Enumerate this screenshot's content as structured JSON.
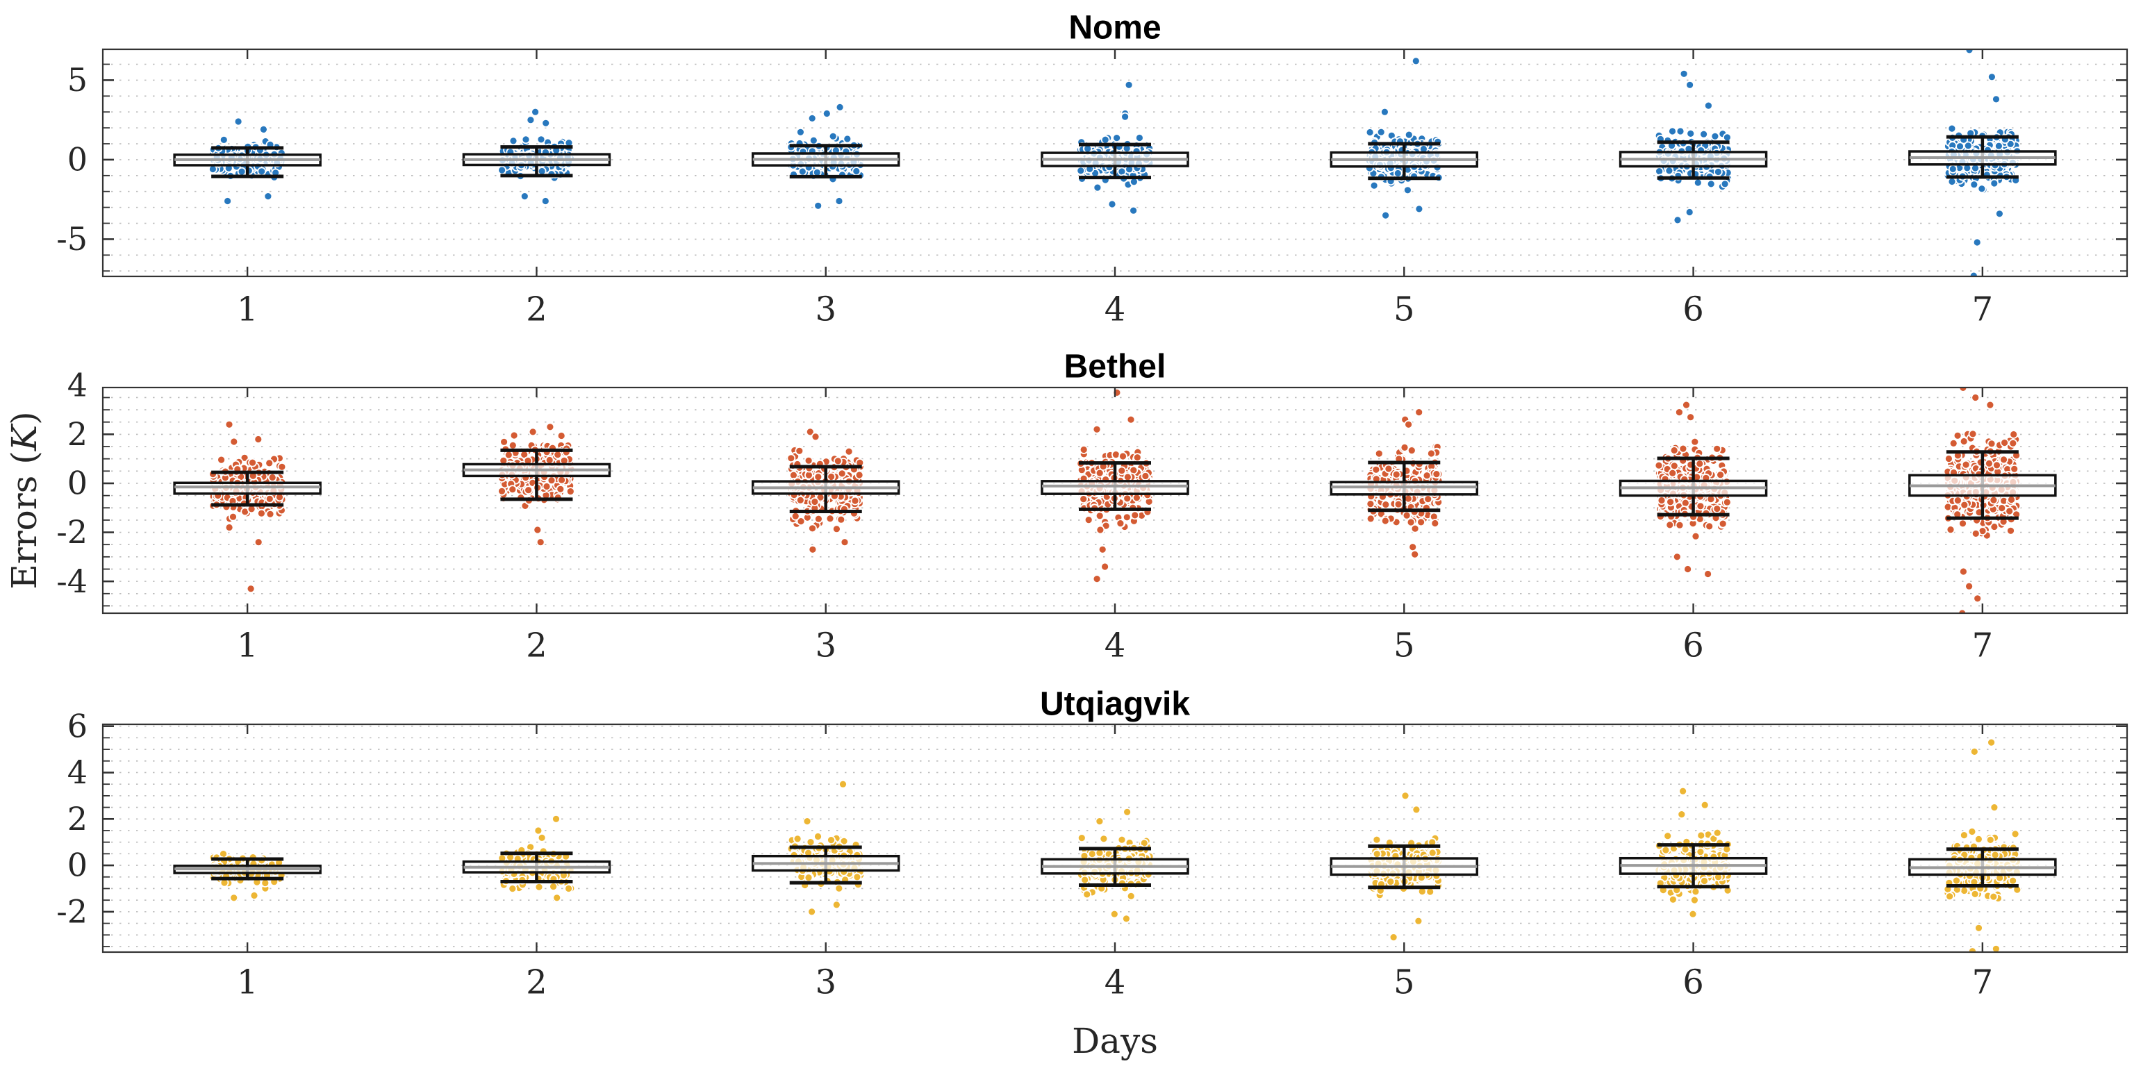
{
  "figure": {
    "background": "#ffffff",
    "xlabel": "Days",
    "ylabel": "Errors (K)"
  },
  "chart_data": {
    "type": "box-scatter",
    "description": "Three stacked panels of temperature forecast errors (K) by lead day; each day shows a jittered point swarm with an overlaid box (Q1-Q3, gray median) and whiskers with caps.",
    "x": [
      1,
      2,
      3,
      4,
      5,
      6,
      7
    ],
    "xlabel": "Days",
    "ylabel": "Errors (K)",
    "xlim": [
      0.5,
      7.5
    ],
    "grid": "horizontal-dotted-minor",
    "legend": "none",
    "colors": {
      "axis": "#333333",
      "text": "#262626",
      "grid": "#bcbcbc",
      "box_stroke": "#111111",
      "median": "#9a9a9a",
      "box_fill": "#ffffff",
      "box_fill_alpha": 0.72,
      "dot_edge": "#ffffff"
    },
    "subplots": [
      {
        "title": "Nome",
        "dot_color": "#2878BE",
        "ylim": [
          -7.34,
          6.94
        ],
        "yticks": [
          -5,
          0,
          5
        ],
        "grid_step": 1,
        "stats": [
          {
            "day": 1,
            "median": 0.0,
            "q1": -0.35,
            "q3": 0.31,
            "whisker_low": -1.05,
            "whisker_high": 0.74,
            "sigma": 0.5,
            "n": 140,
            "outliers": [
              2.4,
              1.9,
              -2.3,
              -2.6
            ]
          },
          {
            "day": 2,
            "median": 0.0,
            "q1": -0.33,
            "q3": 0.34,
            "whisker_low": -1.0,
            "whisker_high": 0.8,
            "sigma": 0.55,
            "n": 150,
            "outliers": [
              3.0,
              2.5,
              2.3,
              -2.3,
              -2.6
            ]
          },
          {
            "day": 3,
            "median": 0.02,
            "q1": -0.36,
            "q3": 0.39,
            "whisker_low": -1.07,
            "whisker_high": 0.88,
            "sigma": 0.6,
            "n": 190,
            "outliers": [
              3.3,
              2.9,
              2.6,
              -2.6,
              -2.9
            ]
          },
          {
            "day": 4,
            "median": 0.02,
            "q1": -0.4,
            "q3": 0.43,
            "whisker_low": -1.12,
            "whisker_high": 0.95,
            "sigma": 0.63,
            "n": 210,
            "outliers": [
              4.7,
              2.9,
              2.7,
              -2.8,
              -3.2
            ]
          },
          {
            "day": 5,
            "median": 0.0,
            "q1": -0.43,
            "q3": 0.45,
            "whisker_low": -1.17,
            "whisker_high": 1.0,
            "sigma": 0.68,
            "n": 220,
            "outliers": [
              6.2,
              3.0,
              -3.1,
              -3.5
            ]
          },
          {
            "day": 6,
            "median": 0.03,
            "q1": -0.42,
            "q3": 0.48,
            "whisker_low": -1.15,
            "whisker_high": 1.1,
            "sigma": 0.7,
            "n": 230,
            "outliers": [
              5.4,
              4.7,
              3.4,
              -3.3,
              -3.8
            ]
          },
          {
            "day": 7,
            "median": 0.13,
            "q1": -0.3,
            "q3": 0.52,
            "whisker_low": -1.09,
            "whisker_high": 1.43,
            "sigma": 0.8,
            "n": 260,
            "outliers": [
              6.9,
              5.2,
              3.8,
              -3.4,
              -5.2,
              -7.3
            ]
          }
        ]
      },
      {
        "title": "Bethel",
        "dot_color": "#D45B33",
        "ylim": [
          -5.3,
          3.91
        ],
        "yticks": [
          -4,
          -2,
          0,
          2,
          4
        ],
        "grid_step": 0.5,
        "stats": [
          {
            "day": 1,
            "median": -0.15,
            "q1": -0.42,
            "q3": 0.02,
            "whisker_low": -0.88,
            "whisker_high": 0.45,
            "sigma": 0.5,
            "n": 260,
            "outliers": [
              2.4,
              1.8,
              1.7,
              -1.8,
              -2.4,
              -4.3
            ]
          },
          {
            "day": 2,
            "median": 0.55,
            "q1": 0.3,
            "q3": 0.78,
            "whisker_low": -0.65,
            "whisker_high": 1.35,
            "sigma": 0.55,
            "n": 270,
            "outliers": [
              2.3,
              2.1,
              -1.9,
              -2.4
            ]
          },
          {
            "day": 3,
            "median": -0.18,
            "q1": -0.42,
            "q3": 0.08,
            "whisker_low": -1.15,
            "whisker_high": 0.68,
            "sigma": 0.62,
            "n": 300,
            "outliers": [
              2.1,
              1.9,
              -2.4,
              -2.7
            ]
          },
          {
            "day": 4,
            "median": -0.11,
            "q1": -0.43,
            "q3": 0.09,
            "whisker_low": -1.06,
            "whisker_high": 0.83,
            "sigma": 0.65,
            "n": 310,
            "outliers": [
              3.7,
              2.6,
              2.2,
              -1.9,
              -2.7,
              -3.4,
              -3.9
            ]
          },
          {
            "day": 5,
            "median": -0.15,
            "q1": -0.45,
            "q3": 0.05,
            "whisker_low": -1.1,
            "whisker_high": 0.85,
            "sigma": 0.65,
            "n": 330,
            "outliers": [
              2.9,
              2.6,
              2.4,
              -2.6,
              -2.9
            ]
          },
          {
            "day": 6,
            "median": -0.18,
            "q1": -0.5,
            "q3": 0.1,
            "whisker_low": -1.28,
            "whisker_high": 1.02,
            "sigma": 0.75,
            "n": 360,
            "outliers": [
              3.2,
              2.9,
              2.7,
              -3.0,
              -3.5,
              -3.7
            ]
          },
          {
            "day": 7,
            "median": -0.1,
            "q1": -0.5,
            "q3": 0.33,
            "whisker_low": -1.42,
            "whisker_high": 1.28,
            "sigma": 0.9,
            "n": 390,
            "outliers": [
              3.9,
              3.5,
              3.2,
              -3.6,
              -4.2,
              -4.7,
              -5.3
            ]
          }
        ]
      },
      {
        "title": "Utqiagvik",
        "dot_color": "#EDB634",
        "ylim": [
          -3.74,
          6.08
        ],
        "yticks": [
          -2,
          0,
          2,
          4,
          6
        ],
        "grid_step": 0.5,
        "stats": [
          {
            "day": 1,
            "median": -0.15,
            "q1": -0.33,
            "q3": -0.02,
            "whisker_low": -0.57,
            "whisker_high": 0.27,
            "sigma": 0.3,
            "n": 130,
            "outliers": [
              -1.3,
              -1.4
            ]
          },
          {
            "day": 2,
            "median": -0.08,
            "q1": -0.3,
            "q3": 0.16,
            "whisker_low": -0.7,
            "whisker_high": 0.52,
            "sigma": 0.38,
            "n": 140,
            "outliers": [
              2.0,
              1.5,
              -1.4
            ]
          },
          {
            "day": 3,
            "median": 0.08,
            "q1": -0.22,
            "q3": 0.4,
            "whisker_low": -0.75,
            "whisker_high": 0.78,
            "sigma": 0.48,
            "n": 160,
            "outliers": [
              3.5,
              1.9,
              -1.7,
              -2.0
            ]
          },
          {
            "day": 4,
            "median": -0.05,
            "q1": -0.35,
            "q3": 0.26,
            "whisker_low": -0.85,
            "whisker_high": 0.72,
            "sigma": 0.5,
            "n": 180,
            "outliers": [
              2.3,
              1.9,
              -2.1,
              -2.3
            ]
          },
          {
            "day": 5,
            "median": -0.05,
            "q1": -0.4,
            "q3": 0.3,
            "whisker_low": -0.95,
            "whisker_high": 0.83,
            "sigma": 0.55,
            "n": 200,
            "outliers": [
              3.0,
              2.4,
              -2.4,
              -3.1
            ]
          },
          {
            "day": 6,
            "median": 0.0,
            "q1": -0.36,
            "q3": 0.31,
            "whisker_low": -0.92,
            "whisker_high": 0.88,
            "sigma": 0.55,
            "n": 230,
            "outliers": [
              3.2,
              2.6,
              2.2,
              -2.1
            ]
          },
          {
            "day": 7,
            "median": -0.1,
            "q1": -0.4,
            "q3": 0.26,
            "whisker_low": -0.88,
            "whisker_high": 0.7,
            "sigma": 0.6,
            "n": 240,
            "outliers": [
              5.3,
              4.9,
              2.5,
              -2.7,
              -3.6,
              -3.7
            ]
          }
        ]
      }
    ]
  }
}
